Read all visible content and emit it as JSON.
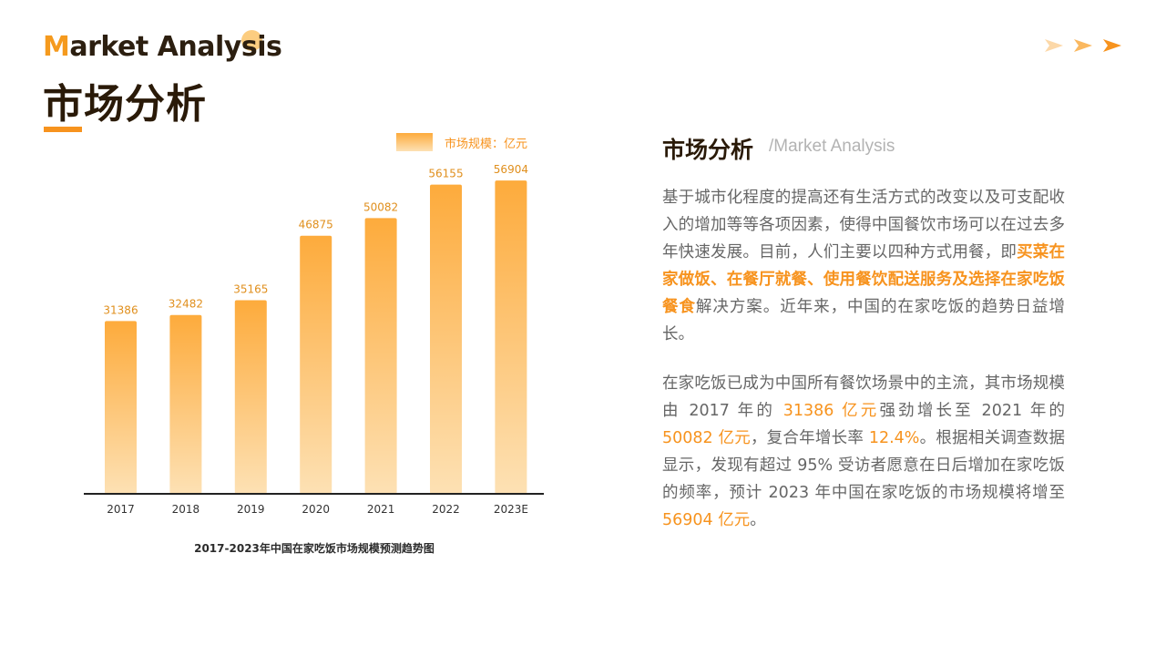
{
  "header": {
    "title_en_first": "M",
    "title_en_rest": "arket Analysis",
    "title_cn": "市场分析"
  },
  "colors": {
    "accent": "#f7931e",
    "bar_top": "#fdab3c",
    "bar_bottom": "#fde1b4",
    "dark": "#2a1a08",
    "body_text": "#666666"
  },
  "decor_icons": [
    "arrow-right-icon",
    "arrow-right-icon",
    "arrow-right-icon"
  ],
  "chart_data": {
    "type": "bar",
    "title": "2017-2023年中国在家吃饭市场规模预测趋势图",
    "categories": [
      "2017",
      "2018",
      "2019",
      "2020",
      "2021",
      "2022",
      "2023E"
    ],
    "values": [
      31386,
      32482,
      35165,
      46875,
      50082,
      56155,
      56904
    ],
    "legend": "市场规模：亿元",
    "legend_position": "top-right",
    "xlabel": "",
    "ylabel": "",
    "ylim": [
      0,
      70000
    ],
    "grid": false
  },
  "right_panel": {
    "title_cn": "市场分析",
    "title_en": "/Market Analysis",
    "p1": {
      "a": "基于城市化程度的提高还有生活方式的改变以及可支配收入的增加等等各项因素，使得中国餐饮市场可以在过去多年快速发展。目前，人们主要以四种方式用餐，即",
      "b": "买菜在家做饭、在餐厅就餐、使用餐饮配送服务及选择在家吃饭餐食",
      "c": "解决方案。近年来，中国的在家吃饭的趋势日益增长。"
    },
    "p2": {
      "a": "在家吃饭已成为中国所有餐饮场景中的主流，其市场规模由 2017 年的 ",
      "b": "31386 亿元",
      "c": "强劲增长至 2021 年的 ",
      "d": "50082 亿元",
      "e": "，复合年增长率 ",
      "f": "12.4%",
      "g": "。根据相关调查数据显示，发现有超过 95% 受访者愿意在日后增加在家吃饭的频率，预计 2023 年中国在家吃饭的市场规模将增至 ",
      "h": "56904 亿元",
      "i": "。"
    }
  }
}
